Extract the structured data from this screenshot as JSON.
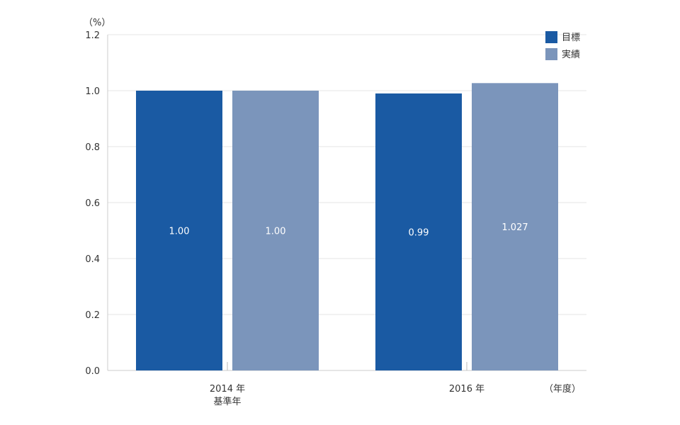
{
  "chart_data": {
    "type": "bar",
    "y_unit": "（%）",
    "x_unit": "（年度）",
    "ylim": [
      0,
      1.2
    ],
    "yticks": [
      "0.0",
      "0.2",
      "0.4",
      "0.6",
      "0.8",
      "1.0",
      "1.2"
    ],
    "grid": true,
    "legend_position": "top-right",
    "categories": [
      {
        "label": "2014 年",
        "sublabel": "基準年"
      },
      {
        "label": "2016 年",
        "sublabel": ""
      }
    ],
    "series": [
      {
        "name": "目標",
        "color": "#1a5aa3",
        "values": [
          1.0,
          0.99
        ],
        "labels": [
          "1.00",
          "0.99"
        ]
      },
      {
        "name": "実績",
        "color": "#7b95bb",
        "values": [
          1.0,
          1.027
        ],
        "labels": [
          "1.00",
          "1.027"
        ]
      }
    ]
  }
}
